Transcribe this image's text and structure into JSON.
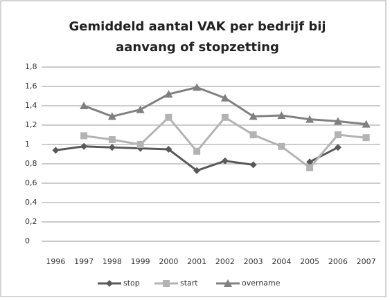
{
  "chart_data": {
    "type": "line",
    "title": "Gemiddeld aantal VAK per bedrijf bij aanvang of stopzetting",
    "categories": [
      "1996",
      "1997",
      "1998",
      "1999",
      "2000",
      "2001",
      "2002",
      "2003",
      "2004",
      "2005",
      "2006",
      "2007"
    ],
    "series": [
      {
        "name": "stop",
        "color": "#595959",
        "marker": "diamond",
        "values": [
          0.94,
          0.98,
          0.97,
          0.96,
          0.95,
          0.73,
          0.83,
          0.79,
          null,
          0.82,
          0.97,
          null
        ]
      },
      {
        "name": "start",
        "color": "#b3b3b3",
        "marker": "square",
        "values": [
          null,
          1.09,
          1.05,
          1.0,
          1.28,
          0.93,
          1.28,
          1.1,
          0.98,
          0.76,
          1.1,
          1.07
        ]
      },
      {
        "name": "overname",
        "color": "#808080",
        "marker": "triangle",
        "values": [
          null,
          1.4,
          1.29,
          1.36,
          1.52,
          1.59,
          1.48,
          1.29,
          1.3,
          1.26,
          1.24,
          1.21
        ]
      }
    ],
    "ylim": [
      0,
      1.8
    ],
    "yticks": [
      0,
      {
        "value": 0.2,
        "label": "0,2"
      },
      {
        "value": 0.4,
        "label": "0,4"
      },
      {
        "value": 0.6,
        "label": "0,6"
      },
      {
        "value": 0.8,
        "label": "0,8"
      },
      1,
      {
        "value": 1.2,
        "label": "1,2"
      },
      {
        "value": 1.4,
        "label": "1,4"
      },
      {
        "value": 1.6,
        "label": "1,6"
      },
      {
        "value": 1.8,
        "label": "1,8"
      }
    ],
    "grid": true,
    "legend": "bottom"
  }
}
